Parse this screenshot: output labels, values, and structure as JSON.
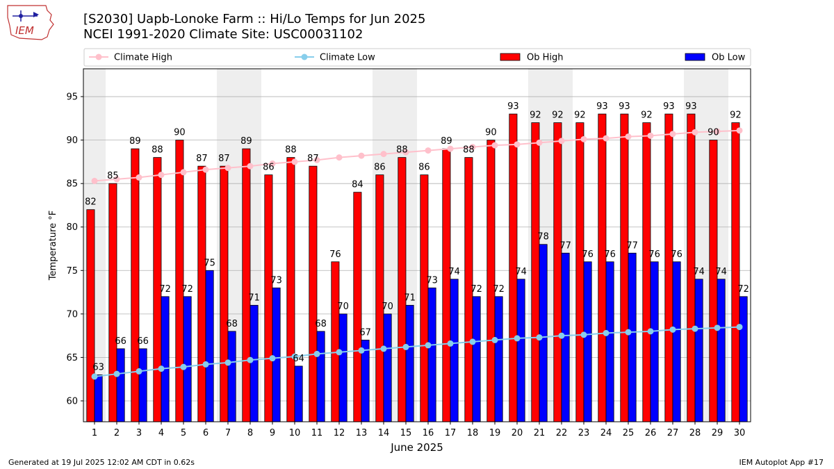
{
  "title": {
    "line1": "[S2030] Uapb-Lonoke Farm :: Hi/Lo Temps for Jun 2025",
    "line2": "NCEI 1991-2020 Climate Site: USC00031102"
  },
  "logo": {
    "text": "IEM"
  },
  "footer": {
    "left": "Generated at 19 Jul 2025 12:02 AM CDT in 0.62s",
    "right": "IEM Autoplot App #17"
  },
  "colors": {
    "ob_high": "#ff0000",
    "ob_low": "#0000ff",
    "climate_high": "#ffc0cb",
    "climate_low": "#87ceeb",
    "weekend_band": "#eeeeee",
    "grid": "#b0b0b0"
  },
  "chart_data": {
    "type": "bar",
    "xlabel": "June 2025",
    "ylabel": "Temperature °F",
    "ylim": [
      57.6,
      98.2
    ],
    "yticks": [
      60,
      65,
      70,
      75,
      80,
      85,
      90,
      95
    ],
    "grid": true,
    "legend_placement": "top",
    "categories": [
      1,
      2,
      3,
      4,
      5,
      6,
      7,
      8,
      9,
      10,
      11,
      12,
      13,
      14,
      15,
      16,
      17,
      18,
      19,
      20,
      21,
      22,
      23,
      24,
      25,
      26,
      27,
      28,
      29,
      30
    ],
    "weekend_days": [
      1,
      7,
      8,
      14,
      15,
      21,
      22,
      28,
      29
    ],
    "series": [
      {
        "name": "Ob High",
        "kind": "bar",
        "values": [
          82,
          85,
          89,
          88,
          90,
          87,
          87,
          89,
          86,
          88,
          87,
          76,
          84,
          86,
          88,
          86,
          89,
          88,
          90,
          93,
          92,
          92,
          92,
          93,
          93,
          92,
          93,
          93,
          90,
          92
        ]
      },
      {
        "name": "Ob Low",
        "kind": "bar",
        "values": [
          63,
          66,
          66,
          72,
          72,
          75,
          68,
          71,
          73,
          64,
          68,
          70,
          67,
          70,
          71,
          73,
          74,
          72,
          72,
          74,
          78,
          77,
          76,
          76,
          77,
          76,
          76,
          74,
          74,
          72
        ]
      },
      {
        "name": "Climate High",
        "kind": "line",
        "values": [
          85.3,
          85.5,
          85.7,
          86.0,
          86.3,
          86.6,
          86.8,
          87.0,
          87.3,
          87.5,
          87.7,
          88.0,
          88.2,
          88.4,
          88.6,
          88.8,
          89.0,
          89.2,
          89.4,
          89.5,
          89.7,
          89.9,
          90.1,
          90.2,
          90.4,
          90.5,
          90.7,
          90.9,
          91.0,
          91.1
        ]
      },
      {
        "name": "Climate Low",
        "kind": "line",
        "values": [
          62.8,
          63.1,
          63.4,
          63.7,
          63.9,
          64.2,
          64.4,
          64.7,
          64.9,
          65.1,
          65.4,
          65.6,
          65.8,
          66.0,
          66.2,
          66.4,
          66.6,
          66.8,
          67.0,
          67.2,
          67.3,
          67.5,
          67.6,
          67.8,
          67.9,
          68.0,
          68.2,
          68.3,
          68.4,
          68.5
        ]
      }
    ],
    "legend": [
      "Climate High",
      "Climate Low",
      "Ob High",
      "Ob Low"
    ]
  }
}
